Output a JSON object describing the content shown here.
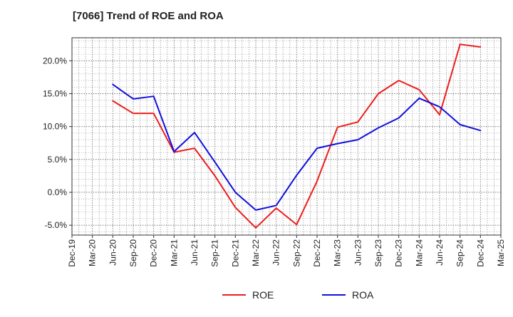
{
  "chart_data": {
    "type": "line",
    "title": "[7066]  Trend of ROE and ROA",
    "xlabel": "",
    "ylabel": "",
    "x": [
      "Dec-19",
      "Mar-20",
      "Jun-20",
      "Sep-20",
      "Dec-20",
      "Mar-21",
      "Jun-21",
      "Sep-21",
      "Dec-21",
      "Mar-22",
      "Jun-22",
      "Sep-22",
      "Dec-22",
      "Mar-23",
      "Jun-23",
      "Sep-23",
      "Dec-23",
      "Mar-24",
      "Jun-24",
      "Sep-24",
      "Dec-24",
      "Mar-25"
    ],
    "ylim": [
      -6.5,
      23.5
    ],
    "yticks": [
      -5,
      0,
      5,
      10,
      15,
      20
    ],
    "ytick_labels": [
      "-5.0%",
      "0.0%",
      "5.0%",
      "10.0%",
      "15.0%",
      "20.0%"
    ],
    "grid": true,
    "legend_position": "bottom",
    "series": [
      {
        "name": "ROE",
        "color": "#ee1c1c",
        "values": [
          null,
          null,
          13.9,
          12.0,
          12.0,
          6.1,
          6.7,
          2.5,
          -2.3,
          -5.4,
          -2.4,
          -4.9,
          1.7,
          9.9,
          10.7,
          15.0,
          17.0,
          15.6,
          11.8,
          22.5,
          22.1,
          null
        ]
      },
      {
        "name": "ROA",
        "color": "#1010dd",
        "values": [
          null,
          null,
          16.4,
          14.2,
          14.6,
          6.2,
          9.1,
          4.6,
          0.0,
          -2.7,
          -2.0,
          2.6,
          6.7,
          7.4,
          8.0,
          9.8,
          11.3,
          14.3,
          13.0,
          10.3,
          9.4,
          null
        ]
      }
    ]
  }
}
